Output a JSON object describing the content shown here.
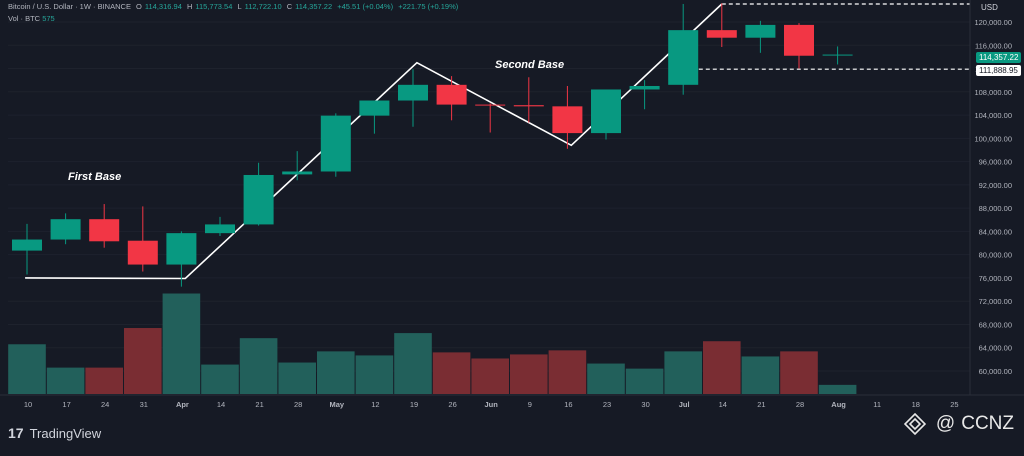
{
  "header": {
    "symbol": "Bitcoin / U.S. Dollar · 1W · BINANCE",
    "o_label": "O",
    "o_value": "114,316.94",
    "h_label": "H",
    "h_value": "115,773.54",
    "l_label": "L",
    "l_value": "112,722.10",
    "c_label": "C",
    "c_value": "114,357.22",
    "change": "+45.51 (+0.04%)",
    "change2": "+221.75 (+0.19%)",
    "vol_label": "Vol · BTC",
    "vol_value": "575"
  },
  "annotations": {
    "first_base": "First Base",
    "second_base": "Second Base"
  },
  "axis": {
    "currency": "USD"
  },
  "price_tags": {
    "current": "114,357.22",
    "level": "111,888.95"
  },
  "branding": {
    "platform": "TradingView",
    "watermark": "CCNZ",
    "at": "@"
  },
  "colors": {
    "up": "#089981",
    "down": "#f23645",
    "vol_up": "#22605b",
    "vol_down": "#7a2d33",
    "bg": "#161a25"
  },
  "chart_data": {
    "type": "candlestick",
    "ylim": [
      58000,
      123500
    ],
    "y_ticks": [
      "60,000.00",
      "64,000.00",
      "68,000.00",
      "72,000.00",
      "76,000.00",
      "80,000.00",
      "84,000.00",
      "88,000.00",
      "92,000.00",
      "96,000.00",
      "100,000.00",
      "104,000.00",
      "108,000.00",
      "112,000.00",
      "116,000.00",
      "120,000.00"
    ],
    "y_tick_values": [
      60000,
      64000,
      68000,
      72000,
      76000,
      80000,
      84000,
      88000,
      92000,
      96000,
      100000,
      104000,
      108000,
      112000,
      116000,
      120000
    ],
    "x_ticks": [
      "10",
      "17",
      "24",
      "31",
      "Apr",
      "14",
      "21",
      "28",
      "May",
      "12",
      "19",
      "26",
      "Jun",
      "9",
      "16",
      "23",
      "30",
      "Jul",
      "14",
      "21",
      "28",
      "Aug",
      "11",
      "18",
      "25"
    ],
    "candles": [
      {
        "x": "Mar 10",
        "o": 80700,
        "h": 85300,
        "l": 76600,
        "c": 82600,
        "v": 4.9
      },
      {
        "x": "Mar 17",
        "o": 82600,
        "h": 87100,
        "l": 81800,
        "c": 86100,
        "v": 2.6
      },
      {
        "x": "Mar 24",
        "o": 86100,
        "h": 88700,
        "l": 81200,
        "c": 82300,
        "v": 2.6
      },
      {
        "x": "Mar 31",
        "o": 82400,
        "h": 88300,
        "l": 77100,
        "c": 78300,
        "v": 6.5
      },
      {
        "x": "Apr 7",
        "o": 78300,
        "h": 84000,
        "l": 74500,
        "c": 83700,
        "v": 9.9
      },
      {
        "x": "Apr 14",
        "o": 83700,
        "h": 86500,
        "l": 83200,
        "c": 85200,
        "v": 2.9
      },
      {
        "x": "Apr 21",
        "o": 85200,
        "h": 95800,
        "l": 85000,
        "c": 93700,
        "v": 5.5
      },
      {
        "x": "Apr 28",
        "o": 93800,
        "h": 97800,
        "l": 92800,
        "c": 94300,
        "v": 3.1
      },
      {
        "x": "May 5",
        "o": 94300,
        "h": 104300,
        "l": 93400,
        "c": 103900,
        "v": 4.2
      },
      {
        "x": "May 12",
        "o": 103900,
        "h": 105900,
        "l": 100800,
        "c": 106500,
        "v": 3.8
      },
      {
        "x": "May 19",
        "o": 106500,
        "h": 111900,
        "l": 102000,
        "c": 109200,
        "v": 6.0
      },
      {
        "x": "May 26",
        "o": 109200,
        "h": 110700,
        "l": 103100,
        "c": 105800,
        "v": 4.1
      },
      {
        "x": "Jun 2",
        "o": 105800,
        "h": 106000,
        "l": 101000,
        "c": 105700,
        "v": 3.5
      },
      {
        "x": "Jun 9",
        "o": 105700,
        "h": 110500,
        "l": 102700,
        "c": 105500,
        "v": 3.9
      },
      {
        "x": "Jun 16",
        "o": 105500,
        "h": 109000,
        "l": 98200,
        "c": 100900,
        "v": 4.3
      },
      {
        "x": "Jun 23",
        "o": 100900,
        "h": 108300,
        "l": 99800,
        "c": 108400,
        "v": 3.0
      },
      {
        "x": "Jun 30",
        "o": 108400,
        "h": 110000,
        "l": 105000,
        "c": 109000,
        "v": 2.5
      },
      {
        "x": "Jul 7",
        "o": 109200,
        "h": 123100,
        "l": 107500,
        "c": 118600,
        "v": 4.2
      },
      {
        "x": "Jul 14",
        "o": 118600,
        "h": 123200,
        "l": 115700,
        "c": 117300,
        "v": 5.2
      },
      {
        "x": "Jul 21",
        "o": 117300,
        "h": 120200,
        "l": 114700,
        "c": 119500,
        "v": 3.7
      },
      {
        "x": "Jul 28",
        "o": 119500,
        "h": 119800,
        "l": 112000,
        "c": 114200,
        "v": 4.2
      },
      {
        "x": "Aug 4",
        "o": 114300,
        "h": 115800,
        "l": 112700,
        "c": 114400,
        "v": 0.9
      }
    ]
  }
}
